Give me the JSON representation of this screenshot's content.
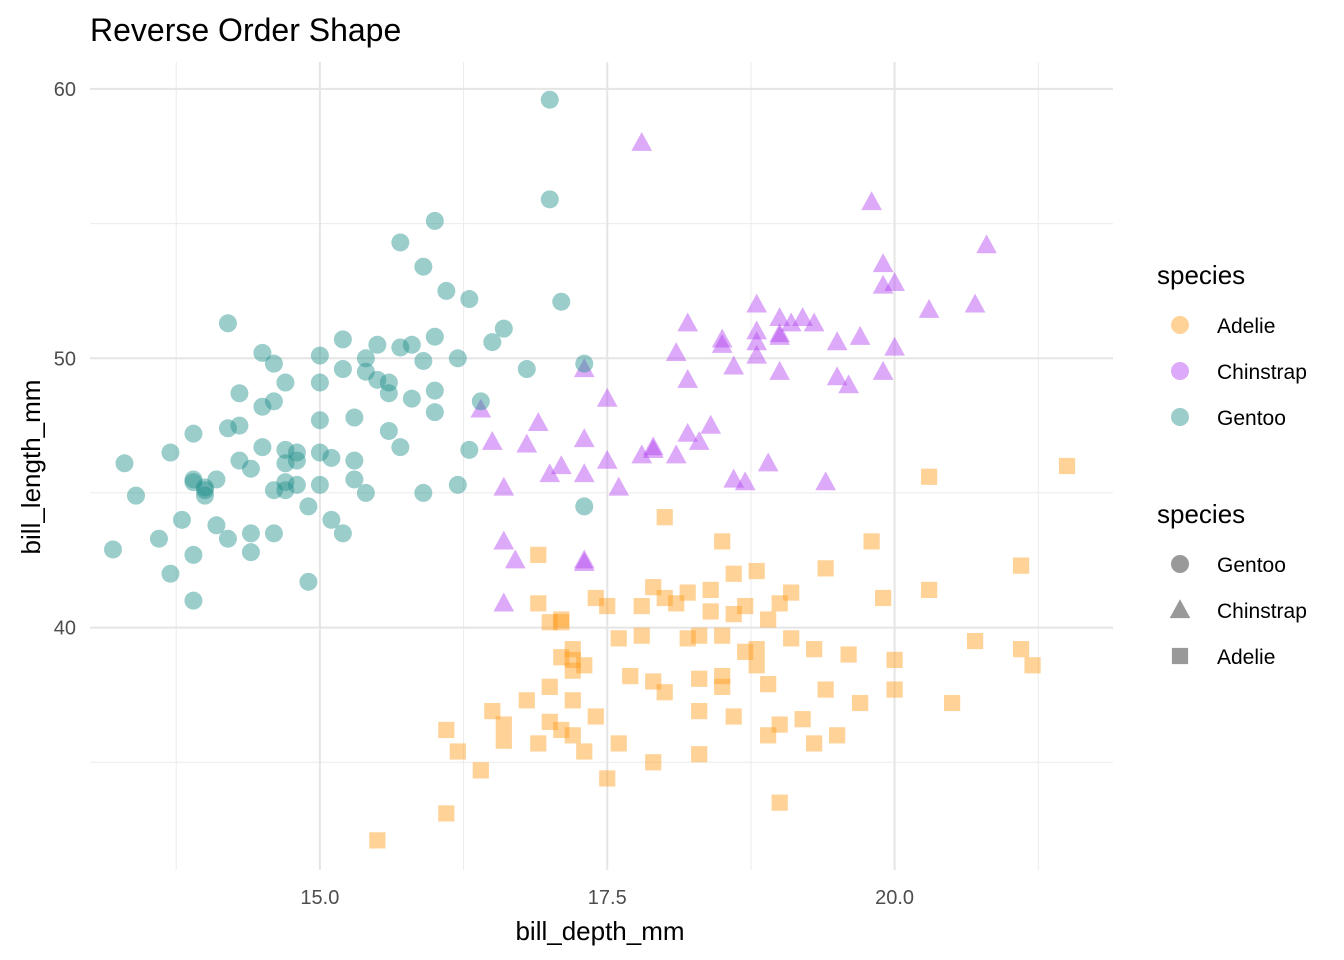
{
  "chart_data": {
    "type": "scatter",
    "title": "Reverse Order Shape",
    "xlabel": "bill_depth_mm",
    "ylabel": "bill_length_mm",
    "xlim": [
      13.0,
      21.9
    ],
    "ylim": [
      31.0,
      61.0
    ],
    "x_ticks": [
      15.0,
      17.5,
      20.0
    ],
    "x_tick_labels": [
      "15.0",
      "17.5",
      "20.0"
    ],
    "y_ticks": [
      40,
      50,
      60
    ],
    "y_tick_labels": [
      "40",
      "50",
      "60"
    ],
    "grid": true,
    "colors": {
      "Adelie": "#ff9c1a",
      "Chinstrap": "#b243f0",
      "Gentoo": "#21918c"
    },
    "legend_color": {
      "title": "species",
      "entries": [
        "Adelie",
        "Chinstrap",
        "Gentoo"
      ],
      "position": "right"
    },
    "legend_shape": {
      "title": "species",
      "entries": [
        "Gentoo",
        "Chinstrap",
        "Adelie"
      ],
      "shapes": [
        "circle",
        "triangle",
        "square"
      ],
      "position": "right"
    },
    "series": [
      {
        "name": "Adelie",
        "shape": "square",
        "points": [
          [
            15.5,
            32.1
          ],
          [
            16.1,
            33.1
          ],
          [
            16.1,
            36.2
          ],
          [
            16.2,
            35.4
          ],
          [
            16.4,
            34.7
          ],
          [
            16.5,
            36.9
          ],
          [
            16.6,
            35.8
          ],
          [
            16.6,
            36.4
          ],
          [
            16.8,
            37.3
          ],
          [
            16.9,
            40.9
          ],
          [
            16.9,
            35.7
          ],
          [
            17.0,
            36.5
          ],
          [
            17.0,
            37.8
          ],
          [
            17.1,
            38.9
          ],
          [
            17.1,
            36.2
          ],
          [
            17.1,
            40.3
          ],
          [
            17.1,
            40.2
          ],
          [
            17.2,
            36.0
          ],
          [
            17.2,
            38.8
          ],
          [
            17.2,
            39.2
          ],
          [
            17.2,
            38.4
          ],
          [
            17.3,
            35.4
          ],
          [
            17.3,
            38.6
          ],
          [
            17.4,
            41.1
          ],
          [
            17.4,
            36.7
          ],
          [
            17.5,
            40.8
          ],
          [
            17.5,
            34.4
          ],
          [
            17.6,
            39.6
          ],
          [
            17.7,
            38.2
          ],
          [
            17.8,
            40.8
          ],
          [
            17.8,
            39.7
          ],
          [
            17.9,
            38.0
          ],
          [
            17.9,
            41.5
          ],
          [
            18.0,
            41.1
          ],
          [
            18.0,
            37.6
          ],
          [
            18.1,
            40.9
          ],
          [
            18.2,
            39.6
          ],
          [
            18.2,
            41.3
          ],
          [
            18.3,
            38.1
          ],
          [
            18.3,
            39.7
          ],
          [
            18.4,
            40.6
          ],
          [
            18.4,
            41.4
          ],
          [
            18.5,
            37.8
          ],
          [
            18.5,
            38.2
          ],
          [
            18.5,
            39.7
          ],
          [
            18.6,
            36.7
          ],
          [
            18.6,
            42.0
          ],
          [
            18.7,
            40.8
          ],
          [
            18.7,
            39.1
          ],
          [
            18.8,
            39.2
          ],
          [
            18.8,
            42.1
          ],
          [
            18.9,
            37.9
          ],
          [
            18.9,
            40.3
          ],
          [
            19.0,
            40.9
          ],
          [
            19.0,
            36.4
          ],
          [
            19.1,
            39.6
          ],
          [
            19.1,
            41.3
          ],
          [
            19.2,
            36.6
          ],
          [
            19.3,
            39.2
          ],
          [
            19.4,
            37.7
          ],
          [
            19.5,
            36.0
          ],
          [
            19.6,
            39.0
          ],
          [
            19.7,
            37.2
          ],
          [
            19.8,
            43.2
          ],
          [
            19.9,
            41.1
          ],
          [
            20.0,
            38.8
          ],
          [
            20.0,
            37.7
          ],
          [
            20.3,
            41.4
          ],
          [
            20.5,
            37.2
          ],
          [
            20.7,
            39.5
          ],
          [
            21.1,
            39.2
          ],
          [
            21.2,
            38.6
          ],
          [
            17.0,
            40.2
          ],
          [
            17.6,
            35.7
          ],
          [
            18.0,
            44.1
          ],
          [
            18.5,
            43.2
          ],
          [
            18.9,
            36.0
          ],
          [
            19.0,
            33.5
          ],
          [
            19.3,
            35.7
          ],
          [
            21.5,
            46.0
          ],
          [
            20.3,
            45.6
          ],
          [
            16.9,
            42.7
          ],
          [
            18.3,
            35.3
          ],
          [
            18.8,
            38.6
          ],
          [
            17.9,
            35.0
          ],
          [
            18.3,
            36.9
          ],
          [
            19.4,
            42.2
          ],
          [
            17.2,
            37.3
          ],
          [
            18.6,
            40.5
          ],
          [
            21.1,
            42.3
          ]
        ]
      },
      {
        "name": "Chinstrap",
        "shape": "triangle",
        "points": [
          [
            16.6,
            40.9
          ],
          [
            16.6,
            43.2
          ],
          [
            16.7,
            42.5
          ],
          [
            16.5,
            46.9
          ],
          [
            16.4,
            48.1
          ],
          [
            16.6,
            45.2
          ],
          [
            16.8,
            46.8
          ],
          [
            17.0,
            45.7
          ],
          [
            17.1,
            46.0
          ],
          [
            17.3,
            45.7
          ],
          [
            17.3,
            47.0
          ],
          [
            17.3,
            49.6
          ],
          [
            17.3,
            42.4
          ],
          [
            17.5,
            48.5
          ],
          [
            17.5,
            46.2
          ],
          [
            17.6,
            45.2
          ],
          [
            17.8,
            46.4
          ],
          [
            17.8,
            58.0
          ],
          [
            17.9,
            46.7
          ],
          [
            18.1,
            46.4
          ],
          [
            18.1,
            50.2
          ],
          [
            18.2,
            49.2
          ],
          [
            18.2,
            51.3
          ],
          [
            18.3,
            46.9
          ],
          [
            18.4,
            47.5
          ],
          [
            18.5,
            50.5
          ],
          [
            18.6,
            45.5
          ],
          [
            18.6,
            49.7
          ],
          [
            18.7,
            45.4
          ],
          [
            18.8,
            50.6
          ],
          [
            18.8,
            52.0
          ],
          [
            18.8,
            51.0
          ],
          [
            19.0,
            50.9
          ],
          [
            19.0,
            51.5
          ],
          [
            19.0,
            49.5
          ],
          [
            19.1,
            51.3
          ],
          [
            19.2,
            51.5
          ],
          [
            19.4,
            45.4
          ],
          [
            19.5,
            50.6
          ],
          [
            19.6,
            49.0
          ],
          [
            19.7,
            50.8
          ],
          [
            19.8,
            55.8
          ],
          [
            19.9,
            52.7
          ],
          [
            19.9,
            49.5
          ],
          [
            20.0,
            52.8
          ],
          [
            20.0,
            50.4
          ],
          [
            20.3,
            51.8
          ],
          [
            20.7,
            52.0
          ],
          [
            20.8,
            54.2
          ],
          [
            19.9,
            53.5
          ],
          [
            18.9,
            46.1
          ],
          [
            19.5,
            49.3
          ],
          [
            16.9,
            47.6
          ],
          [
            17.3,
            42.5
          ],
          [
            17.9,
            46.6
          ],
          [
            18.2,
            47.2
          ],
          [
            18.5,
            50.7
          ],
          [
            18.8,
            50.1
          ],
          [
            19.0,
            50.8
          ],
          [
            19.3,
            51.3
          ]
        ]
      },
      {
        "name": "Gentoo",
        "shape": "circle",
        "points": [
          [
            13.2,
            42.9
          ],
          [
            13.3,
            46.1
          ],
          [
            13.4,
            44.9
          ],
          [
            13.6,
            43.3
          ],
          [
            13.7,
            46.5
          ],
          [
            13.7,
            42.0
          ],
          [
            13.8,
            44.0
          ],
          [
            13.9,
            45.4
          ],
          [
            13.9,
            47.2
          ],
          [
            13.9,
            42.7
          ],
          [
            13.9,
            41.0
          ],
          [
            14.0,
            45.2
          ],
          [
            14.0,
            44.9
          ],
          [
            14.0,
            45.1
          ],
          [
            14.1,
            43.8
          ],
          [
            14.1,
            45.5
          ],
          [
            14.2,
            43.3
          ],
          [
            14.2,
            47.4
          ],
          [
            14.3,
            46.2
          ],
          [
            14.3,
            48.7
          ],
          [
            14.3,
            47.5
          ],
          [
            14.4,
            45.9
          ],
          [
            14.4,
            43.5
          ],
          [
            14.4,
            42.8
          ],
          [
            14.5,
            46.7
          ],
          [
            14.5,
            48.2
          ],
          [
            14.5,
            50.2
          ],
          [
            14.6,
            45.1
          ],
          [
            14.6,
            43.5
          ],
          [
            14.6,
            48.4
          ],
          [
            14.7,
            46.6
          ],
          [
            14.7,
            45.4
          ],
          [
            14.7,
            49.1
          ],
          [
            14.7,
            45.1
          ],
          [
            14.8,
            46.2
          ],
          [
            14.8,
            46.5
          ],
          [
            14.8,
            45.3
          ],
          [
            14.9,
            44.5
          ],
          [
            14.9,
            41.7
          ],
          [
            15.0,
            46.5
          ],
          [
            15.0,
            45.3
          ],
          [
            15.0,
            49.1
          ],
          [
            15.1,
            46.3
          ],
          [
            15.2,
            49.6
          ],
          [
            15.2,
            50.7
          ],
          [
            15.3,
            46.2
          ],
          [
            15.3,
            45.5
          ],
          [
            15.3,
            47.8
          ],
          [
            15.4,
            50.0
          ],
          [
            15.4,
            49.5
          ],
          [
            15.5,
            50.5
          ],
          [
            15.5,
            49.2
          ],
          [
            15.6,
            47.3
          ],
          [
            15.6,
            48.7
          ],
          [
            15.7,
            46.7
          ],
          [
            15.7,
            50.4
          ],
          [
            15.8,
            48.5
          ],
          [
            15.9,
            45.0
          ],
          [
            16.0,
            48.0
          ],
          [
            16.0,
            50.8
          ],
          [
            16.1,
            52.5
          ],
          [
            16.2,
            50.0
          ],
          [
            16.3,
            52.2
          ],
          [
            16.5,
            50.6
          ],
          [
            16.6,
            51.1
          ],
          [
            16.8,
            49.6
          ],
          [
            17.0,
            55.9
          ],
          [
            17.0,
            59.6
          ],
          [
            17.1,
            52.1
          ],
          [
            17.3,
            49.8
          ],
          [
            16.0,
            55.1
          ],
          [
            15.9,
            53.4
          ],
          [
            15.7,
            54.3
          ],
          [
            15.0,
            47.7
          ],
          [
            15.0,
            50.1
          ],
          [
            15.1,
            44.0
          ],
          [
            15.2,
            43.5
          ],
          [
            14.6,
            49.8
          ],
          [
            14.2,
            51.3
          ],
          [
            13.9,
            45.5
          ],
          [
            14.7,
            46.1
          ],
          [
            16.0,
            48.8
          ],
          [
            16.4,
            48.4
          ],
          [
            17.3,
            44.5
          ],
          [
            16.3,
            46.6
          ],
          [
            16.2,
            45.3
          ],
          [
            15.6,
            49.1
          ],
          [
            15.8,
            50.5
          ],
          [
            15.9,
            49.9
          ],
          [
            15.4,
            45.0
          ]
        ]
      }
    ]
  }
}
